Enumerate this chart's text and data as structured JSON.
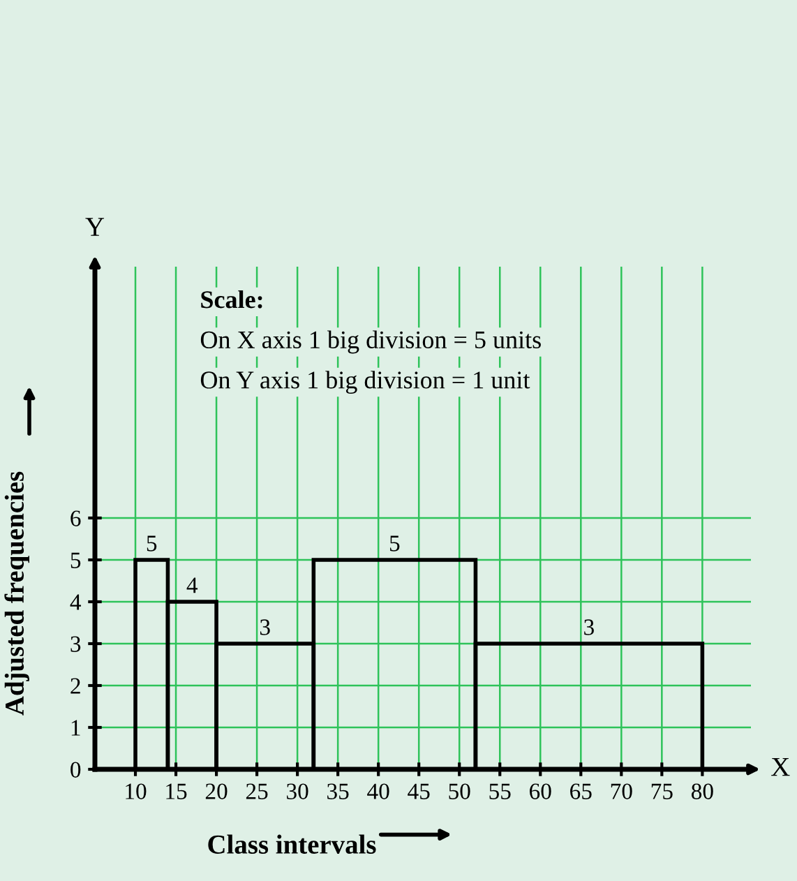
{
  "chart_data": {
    "type": "histogram",
    "bins": [
      10,
      14,
      20,
      32,
      52,
      80
    ],
    "values": [
      5,
      4,
      3,
      5,
      3
    ],
    "data_labels": true,
    "xlabel": "Class intervals",
    "ylabel": "Adjusted frequencies",
    "xlim": [
      5,
      86
    ],
    "ylim": [
      0,
      12
    ],
    "xticks": [
      10,
      15,
      20,
      25,
      30,
      35,
      40,
      45,
      50,
      55,
      60,
      65,
      70,
      75,
      80
    ],
    "yticks": [
      0,
      1,
      2,
      3,
      4,
      5,
      6
    ],
    "grid": true,
    "annotations": [
      "Scale:",
      "On X axis 1 big division = 5 units",
      "On Y axis 1 big division = 1 unit",
      "X",
      "Y"
    ]
  }
}
